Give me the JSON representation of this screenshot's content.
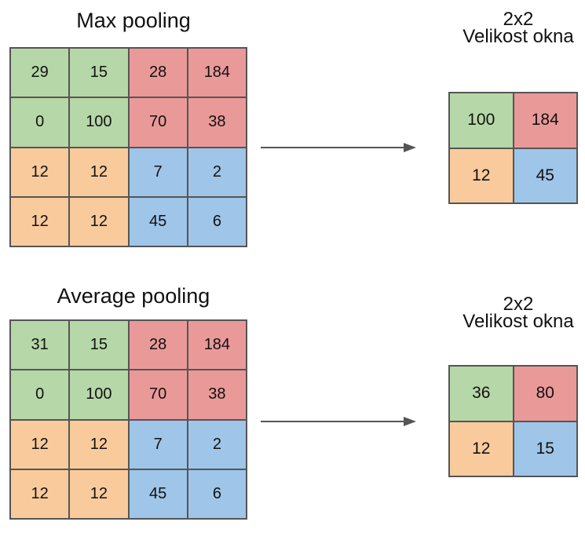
{
  "max_pooling": {
    "title": "Max pooling",
    "input": [
      [
        "29",
        "15",
        "28",
        "184"
      ],
      [
        "0",
        "100",
        "70",
        "38"
      ],
      [
        "12",
        "12",
        "7",
        "2"
      ],
      [
        "12",
        "12",
        "45",
        "6"
      ]
    ],
    "window_size": "2x2",
    "window_label": "Velikost okna",
    "output": [
      [
        "100",
        "184"
      ],
      [
        "12",
        "45"
      ]
    ]
  },
  "average_pooling": {
    "title": "Average pooling",
    "input": [
      [
        "31",
        "15",
        "28",
        "184"
      ],
      [
        "0",
        "100",
        "70",
        "38"
      ],
      [
        "12",
        "12",
        "7",
        "2"
      ],
      [
        "12",
        "12",
        "45",
        "6"
      ]
    ],
    "window_size": "2x2",
    "window_label": "Velikost okna",
    "output": [
      [
        "36",
        "80"
      ],
      [
        "12",
        "15"
      ]
    ]
  },
  "quadrant_colors": {
    "top_left": "#b6d7a8",
    "top_right": "#ea9999",
    "bottom_left": "#f9cb9c",
    "bottom_right": "#9fc5e8"
  },
  "arrow_color": "#555555"
}
